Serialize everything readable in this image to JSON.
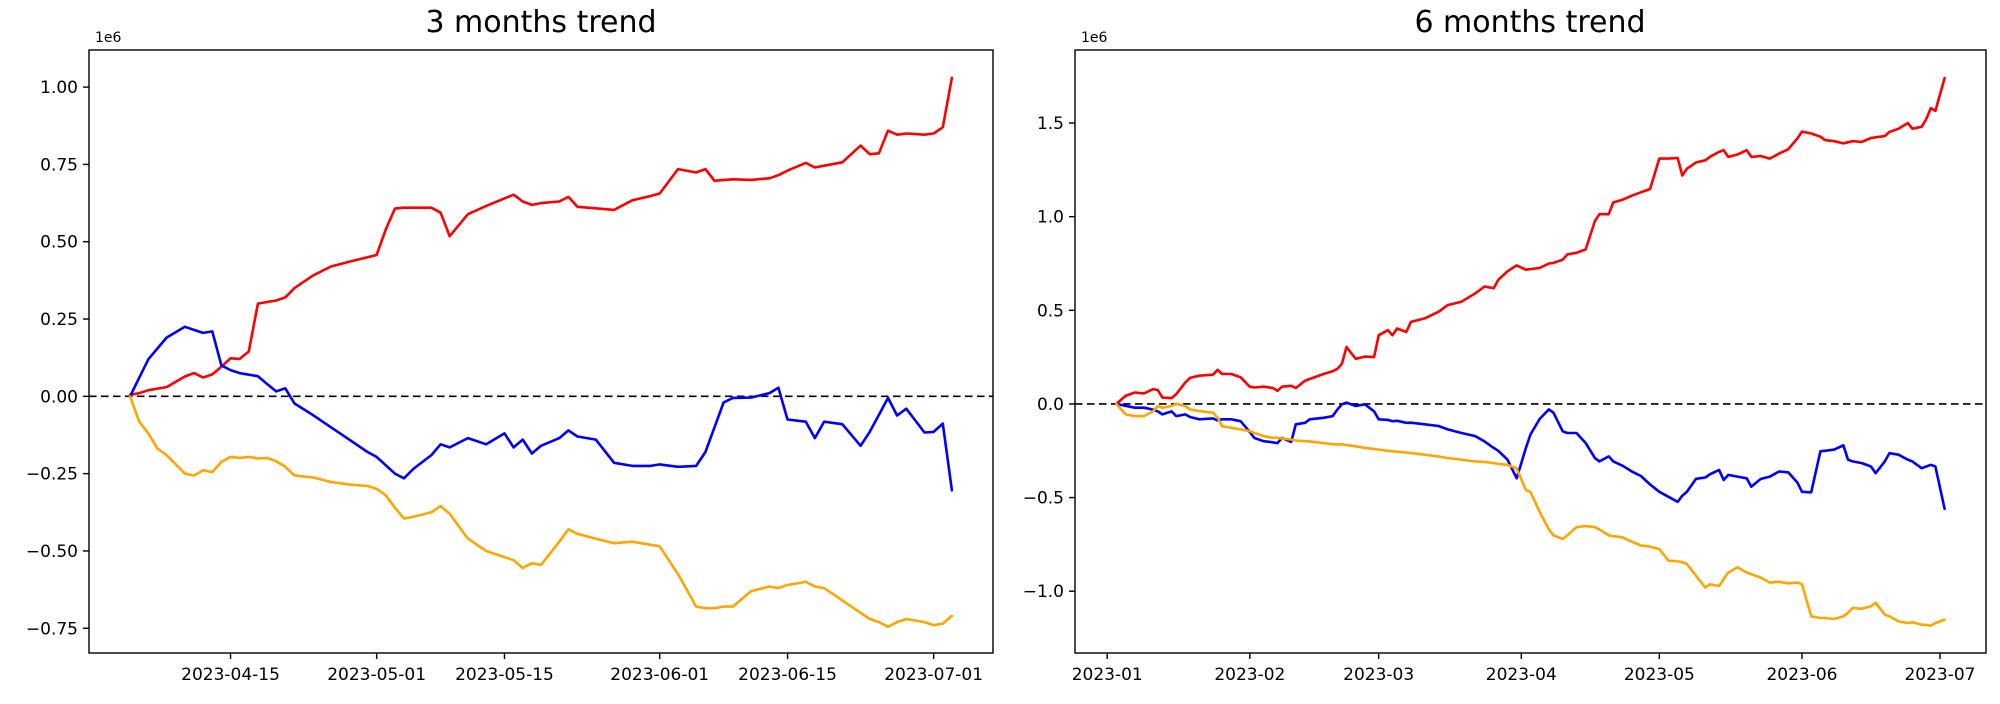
{
  "figure": {
    "background": "#ffffff",
    "zero_line_color": "#000000",
    "axis_color": "#000000"
  },
  "chart_data": [
    {
      "type": "line",
      "title": "3 months trend",
      "y_offset_label": "1e6",
      "xlabel": "",
      "ylabel": "",
      "grid": false,
      "legend": "none",
      "ylim": [
        -0.83,
        1.12
      ],
      "y_ticks": [
        {
          "label": "1.00",
          "value": 1.0
        },
        {
          "label": "0.75",
          "value": 0.75
        },
        {
          "label": "0.50",
          "value": 0.5
        },
        {
          "label": "0.25",
          "value": 0.25
        },
        {
          "label": "0.00",
          "value": 0.0
        },
        {
          "label": "−0.25",
          "value": -0.25
        },
        {
          "label": "−0.50",
          "value": -0.5
        },
        {
          "label": "−0.75",
          "value": -0.75
        }
      ],
      "x_ticks": [
        {
          "label": "2023-04-15",
          "date": "2023-04-15"
        },
        {
          "label": "2023-05-01",
          "date": "2023-05-01"
        },
        {
          "label": "2023-05-15",
          "date": "2023-05-15"
        },
        {
          "label": "2023-06-01",
          "date": "2023-06-01"
        },
        {
          "label": "2023-06-15",
          "date": "2023-06-15"
        },
        {
          "label": "2023-07-01",
          "date": "2023-07-01"
        }
      ],
      "zero_dashed_line": 0.0,
      "x": [
        "2023-04-04",
        "2023-04-05",
        "2023-04-06",
        "2023-04-07",
        "2023-04-08",
        "2023-04-10",
        "2023-04-11",
        "2023-04-12",
        "2023-04-13",
        "2023-04-14",
        "2023-04-15",
        "2023-04-16",
        "2023-04-17",
        "2023-04-18",
        "2023-04-19",
        "2023-04-20",
        "2023-04-21",
        "2023-04-22",
        "2023-04-24",
        "2023-04-26",
        "2023-04-28",
        "2023-04-30",
        "2023-05-01",
        "2023-05-02",
        "2023-05-03",
        "2023-05-04",
        "2023-05-05",
        "2023-05-07",
        "2023-05-08",
        "2023-05-09",
        "2023-05-11",
        "2023-05-13",
        "2023-05-15",
        "2023-05-16",
        "2023-05-17",
        "2023-05-18",
        "2023-05-19",
        "2023-05-21",
        "2023-05-22",
        "2023-05-23",
        "2023-05-25",
        "2023-05-27",
        "2023-05-29",
        "2023-05-31",
        "2023-06-01",
        "2023-06-03",
        "2023-06-05",
        "2023-06-06",
        "2023-06-07",
        "2023-06-08",
        "2023-06-09",
        "2023-06-11",
        "2023-06-13",
        "2023-06-14",
        "2023-06-15",
        "2023-06-17",
        "2023-06-18",
        "2023-06-19",
        "2023-06-21",
        "2023-06-23",
        "2023-06-24",
        "2023-06-25",
        "2023-06-26",
        "2023-06-27",
        "2023-06-28",
        "2023-06-30",
        "2023-07-01",
        "2023-07-02",
        "2023-07-03"
      ],
      "series": [
        {
          "name": "red-line",
          "color": "#ff0000",
          "values": [
            0.005,
            0.01,
            0.02,
            0.025,
            0.03,
            0.064,
            0.075,
            0.061,
            0.071,
            0.096,
            0.123,
            0.121,
            0.145,
            0.3,
            0.305,
            0.31,
            0.32,
            0.35,
            0.39,
            0.42,
            0.435,
            0.45,
            0.457,
            0.54,
            0.607,
            0.61,
            0.61,
            0.61,
            0.594,
            0.518,
            0.589,
            0.616,
            0.64,
            0.652,
            0.63,
            0.619,
            0.625,
            0.63,
            0.645,
            0.613,
            0.608,
            0.603,
            0.634,
            0.648,
            0.656,
            0.735,
            0.724,
            0.735,
            0.697,
            0.7,
            0.702,
            0.7,
            0.705,
            0.715,
            0.73,
            0.755,
            0.74,
            0.746,
            0.757,
            0.811,
            0.783,
            0.786,
            0.859,
            0.846,
            0.85,
            0.846,
            0.85,
            0.87,
            1.03
          ]
        },
        {
          "name": "blue-line",
          "color": "#0000ff",
          "values": [
            0.0,
            0.06,
            0.12,
            0.155,
            0.19,
            0.225,
            0.215,
            0.205,
            0.21,
            0.1,
            0.085,
            0.075,
            0.07,
            0.065,
            0.04,
            0.016,
            0.026,
            -0.023,
            -0.06,
            -0.1,
            -0.14,
            -0.18,
            -0.196,
            -0.223,
            -0.25,
            -0.265,
            -0.235,
            -0.19,
            -0.155,
            -0.165,
            -0.135,
            -0.155,
            -0.12,
            -0.165,
            -0.14,
            -0.185,
            -0.16,
            -0.135,
            -0.11,
            -0.13,
            -0.14,
            -0.215,
            -0.225,
            -0.225,
            -0.22,
            -0.228,
            -0.225,
            -0.18,
            -0.1,
            -0.02,
            -0.005,
            -0.004,
            0.01,
            0.028,
            -0.075,
            -0.082,
            -0.135,
            -0.082,
            -0.09,
            -0.16,
            -0.115,
            -0.06,
            -0.005,
            -0.062,
            -0.04,
            -0.117,
            -0.115,
            -0.088,
            -0.304
          ]
        },
        {
          "name": "orange-line",
          "color": "#ffa500",
          "values": [
            0.0,
            -0.082,
            -0.12,
            -0.169,
            -0.19,
            -0.25,
            -0.256,
            -0.239,
            -0.245,
            -0.212,
            -0.196,
            -0.199,
            -0.196,
            -0.201,
            -0.199,
            -0.21,
            -0.228,
            -0.256,
            -0.262,
            -0.277,
            -0.285,
            -0.29,
            -0.299,
            -0.32,
            -0.36,
            -0.395,
            -0.39,
            -0.375,
            -0.355,
            -0.38,
            -0.46,
            -0.5,
            -0.52,
            -0.53,
            -0.555,
            -0.54,
            -0.545,
            -0.47,
            -0.43,
            -0.445,
            -0.46,
            -0.475,
            -0.47,
            -0.48,
            -0.485,
            -0.575,
            -0.68,
            -0.685,
            -0.685,
            -0.68,
            -0.68,
            -0.63,
            -0.615,
            -0.62,
            -0.61,
            -0.6,
            -0.615,
            -0.62,
            -0.66,
            -0.7,
            -0.72,
            -0.73,
            -0.745,
            -0.73,
            -0.72,
            -0.73,
            -0.74,
            -0.735,
            -0.71
          ]
        }
      ]
    },
    {
      "type": "line",
      "title": "6 months trend",
      "y_offset_label": "1e6",
      "xlabel": "",
      "ylabel": "",
      "grid": false,
      "legend": "none",
      "ylim": [
        -1.33,
        1.89
      ],
      "y_ticks": [
        {
          "label": "1.5",
          "value": 1.5
        },
        {
          "label": "1.0",
          "value": 1.0
        },
        {
          "label": "0.5",
          "value": 0.5
        },
        {
          "label": "0.0",
          "value": 0.0
        },
        {
          "label": "−0.5",
          "value": -0.5
        },
        {
          "label": "−1.0",
          "value": -1.0
        }
      ],
      "x_ticks": [
        {
          "label": "2023-01",
          "date": "2023-01-01"
        },
        {
          "label": "2023-02",
          "date": "2023-02-01"
        },
        {
          "label": "2023-03",
          "date": "2023-03-01"
        },
        {
          "label": "2023-04",
          "date": "2023-04-01"
        },
        {
          "label": "2023-05",
          "date": "2023-05-01"
        },
        {
          "label": "2023-06",
          "date": "2023-06-01"
        },
        {
          "label": "2023-07",
          "date": "2023-07-01"
        }
      ],
      "zero_dashed_line": 0.0,
      "x": [
        "2023-01-03",
        "2023-01-05",
        "2023-01-07",
        "2023-01-09",
        "2023-01-11",
        "2023-01-12",
        "2023-01-13",
        "2023-01-15",
        "2023-01-16",
        "2023-01-18",
        "2023-01-19",
        "2023-01-21",
        "2023-01-24",
        "2023-01-25",
        "2023-01-26",
        "2023-01-28",
        "2023-01-30",
        "2023-02-01",
        "2023-02-02",
        "2023-02-04",
        "2023-02-06",
        "2023-02-07",
        "2023-02-08",
        "2023-02-10",
        "2023-02-11",
        "2023-02-13",
        "2023-02-14",
        "2023-02-17",
        "2023-02-19",
        "2023-02-20",
        "2023-02-21",
        "2023-02-22",
        "2023-02-24",
        "2023-02-26",
        "2023-02-28",
        "2023-03-01",
        "2023-03-03",
        "2023-03-04",
        "2023-03-05",
        "2023-03-07",
        "2023-03-08",
        "2023-03-11",
        "2023-03-14",
        "2023-03-16",
        "2023-03-19",
        "2023-03-22",
        "2023-03-24",
        "2023-03-26",
        "2023-03-27",
        "2023-03-29",
        "2023-03-31",
        "2023-04-02",
        "2023-04-03",
        "2023-04-05",
        "2023-04-07",
        "2023-04-08",
        "2023-04-10",
        "2023-04-11",
        "2023-04-13",
        "2023-04-15",
        "2023-04-17",
        "2023-04-18",
        "2023-04-20",
        "2023-04-21",
        "2023-04-23",
        "2023-04-25",
        "2023-04-27",
        "2023-04-29",
        "2023-05-01",
        "2023-05-03",
        "2023-05-05",
        "2023-05-06",
        "2023-05-07",
        "2023-05-09",
        "2023-05-11",
        "2023-05-12",
        "2023-05-14",
        "2023-05-15",
        "2023-05-16",
        "2023-05-18",
        "2023-05-20",
        "2023-05-21",
        "2023-05-23",
        "2023-05-25",
        "2023-05-27",
        "2023-05-29",
        "2023-05-31",
        "2023-06-01",
        "2023-06-03",
        "2023-06-05",
        "2023-06-06",
        "2023-06-08",
        "2023-06-10",
        "2023-06-11",
        "2023-06-12",
        "2023-06-14",
        "2023-06-16",
        "2023-06-17",
        "2023-06-19",
        "2023-06-20",
        "2023-06-22",
        "2023-06-24",
        "2023-06-25",
        "2023-06-27",
        "2023-06-28",
        "2023-06-29",
        "2023-06-30",
        "2023-07-02"
      ],
      "series": [
        {
          "name": "red-line",
          "color": "#ff0000",
          "values": [
            0.0,
            0.043,
            0.061,
            0.056,
            0.079,
            0.074,
            0.034,
            0.031,
            0.052,
            0.115,
            0.139,
            0.151,
            0.156,
            0.182,
            0.16,
            0.16,
            0.142,
            0.092,
            0.088,
            0.092,
            0.085,
            0.07,
            0.092,
            0.097,
            0.085,
            0.124,
            0.133,
            0.16,
            0.175,
            0.187,
            0.214,
            0.304,
            0.241,
            0.253,
            0.25,
            0.367,
            0.394,
            0.367,
            0.403,
            0.384,
            0.438,
            0.457,
            0.492,
            0.528,
            0.546,
            0.591,
            0.627,
            0.618,
            0.663,
            0.708,
            0.74,
            0.717,
            0.72,
            0.726,
            0.75,
            0.753,
            0.77,
            0.798,
            0.807,
            0.825,
            0.977,
            1.013,
            1.013,
            1.076,
            1.09,
            1.112,
            1.13,
            1.148,
            1.31,
            1.31,
            1.314,
            1.22,
            1.256,
            1.29,
            1.301,
            1.319,
            1.346,
            1.355,
            1.319,
            1.332,
            1.355,
            1.319,
            1.324,
            1.31,
            1.337,
            1.36,
            1.418,
            1.454,
            1.444,
            1.427,
            1.409,
            1.403,
            1.391,
            1.397,
            1.403,
            1.399,
            1.42,
            1.424,
            1.43,
            1.452,
            1.47,
            1.5,
            1.47,
            1.48,
            1.52,
            1.58,
            1.565,
            1.74
          ]
        },
        {
          "name": "blue-line",
          "color": "#0000ff",
          "values": [
            0.0,
            -0.01,
            -0.02,
            -0.02,
            -0.03,
            -0.04,
            -0.056,
            -0.04,
            -0.065,
            -0.056,
            -0.07,
            -0.082,
            -0.077,
            -0.088,
            -0.082,
            -0.082,
            -0.092,
            -0.15,
            -0.182,
            -0.199,
            -0.205,
            -0.209,
            -0.182,
            -0.203,
            -0.109,
            -0.101,
            -0.082,
            -0.074,
            -0.065,
            -0.03,
            -0.002,
            0.007,
            -0.011,
            -0.002,
            -0.04,
            -0.082,
            -0.085,
            -0.092,
            -0.09,
            -0.101,
            -0.1,
            -0.109,
            -0.118,
            -0.136,
            -0.155,
            -0.172,
            -0.2,
            -0.235,
            -0.25,
            -0.298,
            -0.397,
            -0.235,
            -0.163,
            -0.08,
            -0.029,
            -0.047,
            -0.146,
            -0.155,
            -0.155,
            -0.209,
            -0.289,
            -0.307,
            -0.28,
            -0.307,
            -0.33,
            -0.36,
            -0.385,
            -0.43,
            -0.469,
            -0.496,
            -0.523,
            -0.49,
            -0.469,
            -0.4,
            -0.393,
            -0.376,
            -0.352,
            -0.406,
            -0.379,
            -0.388,
            -0.397,
            -0.442,
            -0.401,
            -0.388,
            -0.361,
            -0.365,
            -0.42,
            -0.469,
            -0.472,
            -0.253,
            -0.25,
            -0.244,
            -0.221,
            -0.298,
            -0.307,
            -0.316,
            -0.334,
            -0.37,
            -0.307,
            -0.263,
            -0.271,
            -0.298,
            -0.307,
            -0.343,
            -0.334,
            -0.325,
            -0.334,
            -0.56
          ]
        },
        {
          "name": "orange-line",
          "color": "#ffa500",
          "values": [
            0.0,
            -0.056,
            -0.065,
            -0.065,
            -0.038,
            -0.011,
            -0.02,
            -0.011,
            0.0,
            -0.011,
            -0.029,
            -0.038,
            -0.047,
            -0.074,
            -0.119,
            -0.128,
            -0.136,
            -0.145,
            -0.155,
            -0.172,
            -0.182,
            -0.18,
            -0.185,
            -0.19,
            -0.195,
            -0.199,
            -0.2,
            -0.209,
            -0.215,
            -0.217,
            -0.215,
            -0.22,
            -0.226,
            -0.235,
            -0.24,
            -0.244,
            -0.25,
            -0.253,
            -0.255,
            -0.26,
            -0.262,
            -0.271,
            -0.28,
            -0.289,
            -0.298,
            -0.307,
            -0.31,
            -0.316,
            -0.32,
            -0.325,
            -0.345,
            -0.46,
            -0.47,
            -0.577,
            -0.67,
            -0.702,
            -0.721,
            -0.702,
            -0.658,
            -0.652,
            -0.658,
            -0.67,
            -0.702,
            -0.706,
            -0.712,
            -0.735,
            -0.756,
            -0.762,
            -0.775,
            -0.837,
            -0.84,
            -0.846,
            -0.855,
            -0.918,
            -0.981,
            -0.963,
            -0.972,
            -0.936,
            -0.9,
            -0.873,
            -0.9,
            -0.909,
            -0.927,
            -0.954,
            -0.95,
            -0.958,
            -0.954,
            -0.963,
            -1.134,
            -1.143,
            -1.143,
            -1.148,
            -1.134,
            -1.116,
            -1.089,
            -1.094,
            -1.08,
            -1.062,
            -1.125,
            -1.134,
            -1.161,
            -1.17,
            -1.166,
            -1.179,
            -1.18,
            -1.184,
            -1.17,
            -1.152
          ]
        }
      ]
    }
  ]
}
